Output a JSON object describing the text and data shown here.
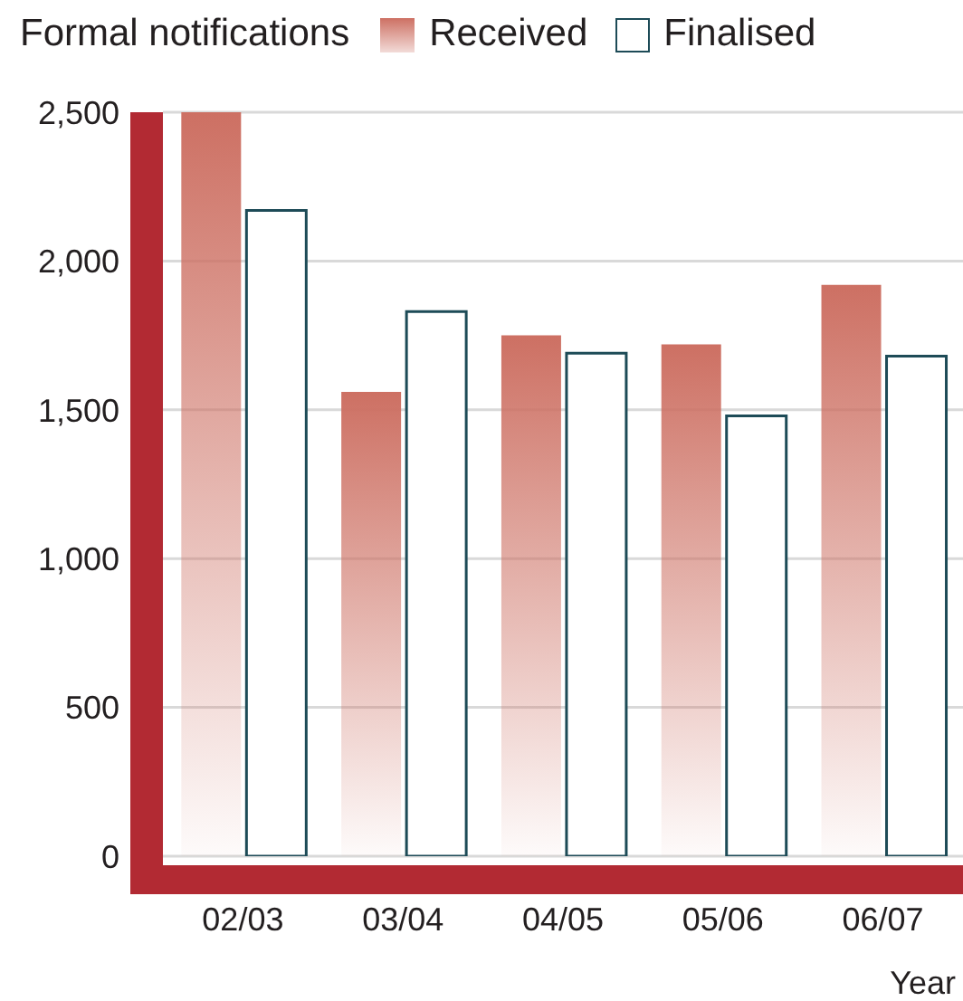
{
  "chart_data": {
    "type": "bar",
    "title": "Formal notifications",
    "xlabel": "Year",
    "categories": [
      "02/03",
      "03/04",
      "04/05",
      "05/06",
      "06/07"
    ],
    "series": [
      {
        "name": "Received",
        "color": "#cd7063",
        "values": [
          2500,
          1560,
          1750,
          1720,
          1920
        ]
      },
      {
        "name": "Finalised",
        "color": "#1d4b57",
        "values": [
          2170,
          1830,
          1690,
          1480,
          1680
        ]
      }
    ],
    "ylim": [
      0,
      2500
    ],
    "yticks": [
      0,
      500,
      {
        "value": 1000,
        "label": "1,000"
      },
      {
        "value": 1500,
        "label": "1,500"
      },
      {
        "value": 2000,
        "label": "2,000"
      },
      {
        "value": 2500,
        "label": "2,500"
      }
    ],
    "grid": "y",
    "legend": "top left"
  }
}
